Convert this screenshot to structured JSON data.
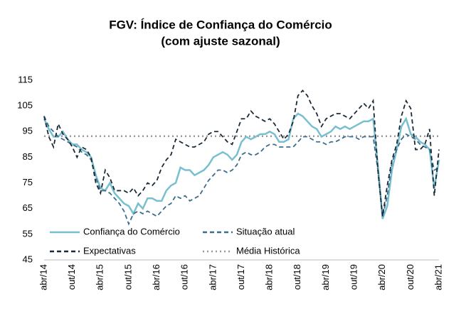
{
  "chart_data": {
    "type": "line",
    "title": "FGV: Índice de Confiança do Comércio",
    "subtitle": "(com ajuste sazonal)",
    "categories": [
      "abr/14",
      null,
      null,
      null,
      null,
      null,
      "out/14",
      null,
      null,
      null,
      null,
      null,
      "abr/15",
      null,
      null,
      null,
      null,
      null,
      "out/15",
      null,
      null,
      null,
      null,
      null,
      "abr/16",
      null,
      null,
      null,
      null,
      null,
      "out/16",
      null,
      null,
      null,
      null,
      null,
      "abr/17",
      null,
      null,
      null,
      null,
      null,
      "out/17",
      null,
      null,
      null,
      null,
      null,
      "abr/18",
      null,
      null,
      null,
      null,
      null,
      "out/18",
      null,
      null,
      null,
      null,
      null,
      "abr/19",
      null,
      null,
      null,
      null,
      null,
      "out/19",
      null,
      null,
      null,
      null,
      null,
      "abr/20",
      null,
      null,
      null,
      null,
      null,
      "out/20",
      null,
      null,
      null,
      null,
      null,
      "abr/21"
    ],
    "series": [
      {
        "name": "Confiança do Comércio",
        "color": "#78bfcf",
        "style": "solid",
        "values": [
          100,
          96,
          93,
          93,
          95,
          92,
          90,
          90,
          88,
          87,
          85,
          78,
          73,
          72,
          75,
          71,
          69,
          67,
          66,
          63,
          67,
          65,
          69,
          69,
          68,
          68,
          72,
          74,
          75,
          81,
          80,
          80,
          78,
          79,
          80,
          82,
          85,
          86,
          87,
          86,
          84,
          86,
          91,
          93,
          92,
          93,
          94,
          94,
          95,
          94,
          91,
          91,
          92,
          100,
          102,
          101,
          99,
          97,
          96,
          93,
          94,
          95,
          97,
          96,
          97,
          96,
          97,
          98,
          99,
          99,
          100,
          82,
          61,
          66,
          80,
          88,
          97,
          100,
          94,
          93,
          91,
          90,
          88,
          73,
          84
        ]
      },
      {
        "name": "Situação atual",
        "color": "#3c6e8c",
        "style": "dashed",
        "values": [
          101,
          97,
          95,
          93,
          92,
          91,
          90,
          89,
          87,
          86,
          84,
          77,
          72,
          72,
          71,
          69,
          67,
          64,
          59,
          63,
          64,
          63,
          64,
          63,
          62,
          64,
          66,
          67,
          70,
          69,
          70,
          68,
          69,
          70,
          73,
          76,
          78,
          80,
          80,
          79,
          80,
          82,
          86,
          87,
          86,
          86,
          87,
          89,
          90,
          90,
          89,
          89,
          89,
          89,
          91,
          93,
          93,
          92,
          91,
          91,
          90,
          91,
          91,
          92,
          93,
          93,
          93,
          92,
          93,
          93,
          93,
          80,
          62,
          70,
          83,
          88,
          92,
          94,
          93,
          92,
          90,
          89,
          88,
          80,
          81
        ]
      },
      {
        "name": "Expectativas",
        "color": "#1b2a38",
        "style": "dashed",
        "values": [
          101,
          93,
          89,
          98,
          94,
          92,
          89,
          85,
          89,
          88,
          85,
          75,
          71,
          80,
          77,
          72,
          72,
          72,
          71,
          73,
          70,
          72,
          75,
          74,
          76,
          81,
          84,
          86,
          92,
          91,
          90,
          89,
          89,
          90,
          91,
          94,
          95,
          95,
          93,
          91,
          90,
          95,
          100,
          100,
          103,
          101,
          100,
          99,
          100,
          98,
          95,
          92,
          94,
          99,
          109,
          111,
          109,
          105,
          102,
          97,
          100,
          101,
          102,
          102,
          101,
          100,
          102,
          104,
          106,
          104,
          107,
          80,
          62,
          74,
          84,
          90,
          101,
          107,
          104,
          88,
          88,
          90,
          96,
          70,
          88
        ]
      }
    ],
    "reference_line": {
      "name": "Média Histórica",
      "value": 93.2,
      "color": "#999999"
    },
    "ylim": [
      45,
      115
    ],
    "yticks": [
      45,
      55,
      65,
      75,
      85,
      95,
      105,
      115
    ],
    "grid": false
  }
}
